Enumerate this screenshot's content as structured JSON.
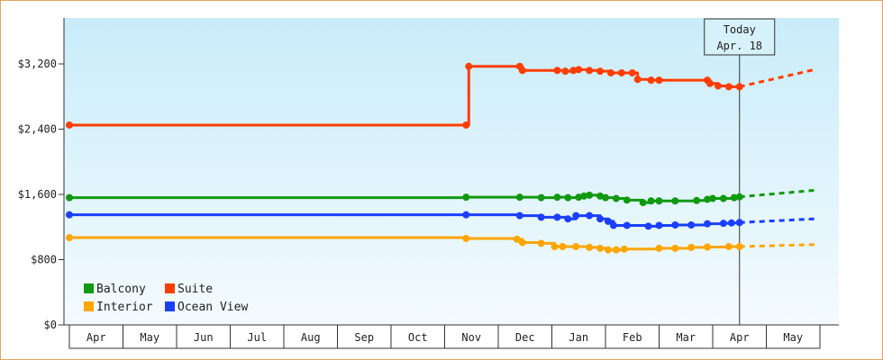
{
  "chart_data": {
    "type": "line",
    "title": "",
    "xlabel": "",
    "ylabel": "",
    "x_months": [
      "Apr",
      "May",
      "Jun",
      "Jul",
      "Aug",
      "Sep",
      "Oct",
      "Nov",
      "Dec",
      "Jan",
      "Feb",
      "Mar",
      "Apr",
      "May"
    ],
    "y_ticks": [
      "$0",
      "$800",
      "$1,600",
      "$2,400",
      "$3,200"
    ],
    "ylim": [
      0,
      3200
    ],
    "grid": false,
    "legend_position": "bottom-left",
    "today": {
      "label_line1": "Today",
      "label_line2": "Apr. 18",
      "x": 12.5
    },
    "series": [
      {
        "name": "Balcony",
        "color": "#119911",
        "points": [
          [
            0.0,
            1560
          ],
          [
            7.4,
            1565
          ],
          [
            8.4,
            1565
          ],
          [
            8.8,
            1560
          ],
          [
            9.1,
            1565
          ],
          [
            9.3,
            1560
          ],
          [
            9.5,
            1565
          ],
          [
            9.6,
            1580
          ],
          [
            9.7,
            1590
          ],
          [
            9.9,
            1580
          ],
          [
            10.0,
            1560
          ],
          [
            10.2,
            1550
          ],
          [
            10.4,
            1530
          ],
          [
            10.7,
            1500
          ],
          [
            10.85,
            1520
          ],
          [
            11.0,
            1520
          ],
          [
            11.3,
            1520
          ],
          [
            11.7,
            1525
          ],
          [
            11.9,
            1540
          ],
          [
            12.0,
            1550
          ],
          [
            12.2,
            1550
          ],
          [
            12.4,
            1560
          ],
          [
            12.5,
            1570
          ]
        ],
        "forecast": [
          [
            12.5,
            1570
          ],
          [
            13.9,
            1650
          ]
        ]
      },
      {
        "name": "Suite",
        "color": "#ff3d00",
        "points": [
          [
            0.0,
            2450
          ],
          [
            7.4,
            2450
          ],
          [
            7.45,
            3170
          ],
          [
            8.4,
            3170
          ],
          [
            8.45,
            3120
          ],
          [
            9.1,
            3120
          ],
          [
            9.25,
            3110
          ],
          [
            9.4,
            3120
          ],
          [
            9.5,
            3130
          ],
          [
            9.7,
            3120
          ],
          [
            9.9,
            3110
          ],
          [
            10.1,
            3090
          ],
          [
            10.3,
            3090
          ],
          [
            10.5,
            3090
          ],
          [
            10.6,
            3010
          ],
          [
            10.85,
            3000
          ],
          [
            11.0,
            3000
          ],
          [
            11.9,
            3000
          ],
          [
            11.95,
            2960
          ],
          [
            12.1,
            2930
          ],
          [
            12.3,
            2920
          ],
          [
            12.5,
            2920
          ]
        ],
        "forecast": [
          [
            12.5,
            2920
          ],
          [
            13.9,
            3130
          ]
        ]
      },
      {
        "name": "Interior",
        "color": "#ffa500",
        "points": [
          [
            0.0,
            1070
          ],
          [
            7.4,
            1060
          ],
          [
            8.35,
            1050
          ],
          [
            8.45,
            1010
          ],
          [
            8.8,
            1000
          ],
          [
            9.05,
            960
          ],
          [
            9.2,
            960
          ],
          [
            9.45,
            960
          ],
          [
            9.7,
            950
          ],
          [
            9.9,
            940
          ],
          [
            10.05,
            920
          ],
          [
            10.2,
            920
          ],
          [
            10.35,
            930
          ],
          [
            11.0,
            940
          ],
          [
            11.3,
            940
          ],
          [
            11.6,
            950
          ],
          [
            11.9,
            955
          ],
          [
            12.3,
            960
          ],
          [
            12.5,
            960
          ]
        ],
        "forecast": [
          [
            12.5,
            960
          ],
          [
            13.9,
            985
          ]
        ]
      },
      {
        "name": "Ocean View",
        "color": "#1a3fff",
        "points": [
          [
            0.0,
            1350
          ],
          [
            7.4,
            1350
          ],
          [
            8.4,
            1340
          ],
          [
            8.8,
            1320
          ],
          [
            9.1,
            1320
          ],
          [
            9.3,
            1300
          ],
          [
            9.45,
            1340
          ],
          [
            9.7,
            1340
          ],
          [
            9.9,
            1300
          ],
          [
            10.05,
            1270
          ],
          [
            10.15,
            1220
          ],
          [
            10.4,
            1220
          ],
          [
            10.8,
            1210
          ],
          [
            11.0,
            1220
          ],
          [
            11.3,
            1225
          ],
          [
            11.6,
            1225
          ],
          [
            11.9,
            1240
          ],
          [
            12.2,
            1245
          ],
          [
            12.35,
            1250
          ],
          [
            12.5,
            1255
          ]
        ],
        "forecast": [
          [
            12.5,
            1255
          ],
          [
            13.9,
            1300
          ]
        ]
      }
    ]
  },
  "legend": [
    {
      "name": "Balcony",
      "color": "#119911"
    },
    {
      "name": "Suite",
      "color": "#ff3d00"
    },
    {
      "name": "Interior",
      "color": "#ffa500"
    },
    {
      "name": "Ocean View",
      "color": "#1a3fff"
    }
  ]
}
